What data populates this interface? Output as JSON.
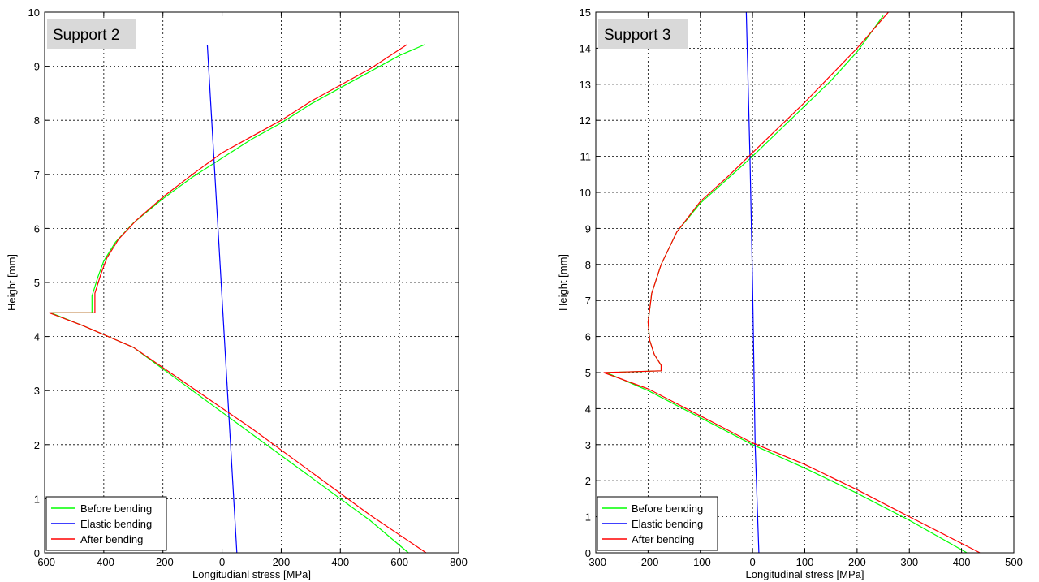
{
  "chart_data": [
    {
      "type": "line",
      "title": "Support 2",
      "xlabel": "Longitudianl stress [MPa]",
      "ylabel": "Height [mm]",
      "xlim": [
        -600,
        800
      ],
      "ylim": [
        0,
        10
      ],
      "xticks": [
        -600,
        -400,
        -200,
        0,
        200,
        400,
        600,
        800
      ],
      "yticks": [
        0,
        1,
        2,
        3,
        4,
        5,
        6,
        7,
        8,
        9,
        10
      ],
      "grid": true,
      "legend_position": "bottom-left",
      "series": [
        {
          "name": "Before bending",
          "color": "#00ff00",
          "x": [
            630,
            500,
            300,
            100,
            -100,
            -300,
            -470,
            -580,
            -440,
            -440,
            -420,
            -400,
            -360,
            -300,
            -200,
            -100,
            0,
            100,
            200,
            300,
            400,
            500,
            600,
            685
          ],
          "y": [
            0.0,
            0.6,
            1.4,
            2.2,
            3.0,
            3.8,
            4.2,
            4.44,
            4.44,
            4.75,
            5.1,
            5.4,
            5.75,
            6.1,
            6.55,
            6.95,
            7.3,
            7.65,
            7.95,
            8.3,
            8.6,
            8.9,
            9.2,
            9.4
          ]
        },
        {
          "name": "Elastic bending",
          "color": "#0000ff",
          "x": [
            -50,
            50
          ],
          "y": [
            9.4,
            0.0
          ]
        },
        {
          "name": "After bending",
          "color": "#ff0000",
          "x": [
            690,
            500,
            300,
            100,
            -100,
            -300,
            -470,
            -585,
            -430,
            -430,
            -410,
            -390,
            -350,
            -290,
            -195,
            -100,
            0,
            100,
            200,
            300,
            400,
            500,
            625
          ],
          "y": [
            0.0,
            0.7,
            1.5,
            2.3,
            3.05,
            3.8,
            4.2,
            4.44,
            4.44,
            4.8,
            5.15,
            5.45,
            5.8,
            6.15,
            6.6,
            7.0,
            7.4,
            7.7,
            8.0,
            8.35,
            8.65,
            8.95,
            9.4
          ]
        }
      ]
    },
    {
      "type": "line",
      "title": "Support 3",
      "xlabel": "Longitudinal stress [MPa]",
      "ylabel": "Height [mm]",
      "xlim": [
        -300,
        500
      ],
      "ylim": [
        0,
        15
      ],
      "xticks": [
        -300,
        -200,
        -100,
        0,
        100,
        200,
        300,
        400,
        500
      ],
      "yticks": [
        0,
        1,
        2,
        3,
        4,
        5,
        6,
        7,
        8,
        9,
        10,
        11,
        12,
        13,
        14,
        15
      ],
      "grid": true,
      "legend_position": "bottom-left",
      "series": [
        {
          "name": "Before bending",
          "color": "#00ff00",
          "x": [
            410,
            300,
            200,
            100,
            0,
            -100,
            -200,
            -280,
            -175,
            -175,
            -188,
            -197,
            -200,
            -193,
            -175,
            -145,
            -100,
            -50,
            0,
            50,
            100,
            150,
            200,
            250
          ],
          "y": [
            0.0,
            0.9,
            1.65,
            2.35,
            3.0,
            3.75,
            4.5,
            5.0,
            5.05,
            5.2,
            5.5,
            5.9,
            6.4,
            7.2,
            8.0,
            8.9,
            9.7,
            10.35,
            11.0,
            11.7,
            12.4,
            13.1,
            13.9,
            14.9
          ]
        },
        {
          "name": "Elastic bending",
          "color": "#0000ff",
          "x": [
            -12,
            -5,
            0,
            5,
            12
          ],
          "y": [
            15.0,
            11.0,
            7.5,
            3.0,
            0.0
          ]
        },
        {
          "name": "After bending",
          "color": "#ff0000",
          "x": [
            435,
            300,
            200,
            100,
            0,
            -100,
            -200,
            -285,
            -175,
            -175,
            -188,
            -197,
            -200,
            -193,
            -175,
            -145,
            -100,
            -50,
            0,
            50,
            100,
            150,
            200,
            260
          ],
          "y": [
            0.0,
            1.0,
            1.75,
            2.45,
            3.05,
            3.8,
            4.55,
            5.0,
            5.05,
            5.2,
            5.5,
            5.9,
            6.4,
            7.2,
            8.0,
            8.9,
            9.75,
            10.4,
            11.1,
            11.8,
            12.5,
            13.25,
            14.0,
            15.0
          ]
        }
      ]
    }
  ]
}
